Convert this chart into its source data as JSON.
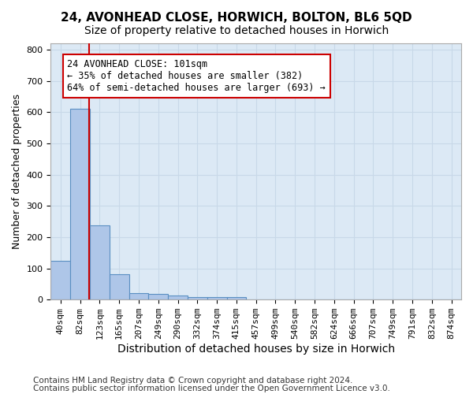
{
  "title": "24, AVONHEAD CLOSE, HORWICH, BOLTON, BL6 5QD",
  "subtitle": "Size of property relative to detached houses in Horwich",
  "xlabel": "Distribution of detached houses by size in Horwich",
  "ylabel": "Number of detached properties",
  "footer_line1": "Contains HM Land Registry data © Crown copyright and database right 2024.",
  "footer_line2": "Contains public sector information licensed under the Open Government Licence v3.0.",
  "bin_labels": [
    "40sqm",
    "82sqm",
    "123sqm",
    "165sqm",
    "207sqm",
    "249sqm",
    "290sqm",
    "332sqm",
    "374sqm",
    "415sqm",
    "457sqm",
    "499sqm",
    "540sqm",
    "582sqm",
    "624sqm",
    "666sqm",
    "707sqm",
    "749sqm",
    "791sqm",
    "832sqm",
    "874sqm"
  ],
  "bar_heights": [
    125,
    610,
    237,
    80,
    20,
    18,
    12,
    7,
    7,
    8,
    0,
    0,
    0,
    0,
    0,
    0,
    0,
    0,
    0,
    0,
    0
  ],
  "bar_color": "#aec6e8",
  "bar_edgecolor": "#5a8fc2",
  "property_line_x": 1.46,
  "property_line_color": "#cc0000",
  "annotation_text": "24 AVONHEAD CLOSE: 101sqm\n← 35% of detached houses are smaller (382)\n64% of semi-detached houses are larger (693) →",
  "annotation_box_color": "#ffffff",
  "annotation_box_edgecolor": "#cc0000",
  "ylim": [
    0,
    820
  ],
  "yticks": [
    0,
    100,
    200,
    300,
    400,
    500,
    600,
    700,
    800
  ],
  "grid_color": "#c8d8e8",
  "background_color": "#dce9f5",
  "title_fontsize": 11,
  "subtitle_fontsize": 10,
  "xlabel_fontsize": 10,
  "ylabel_fontsize": 9,
  "tick_fontsize": 8,
  "annotation_fontsize": 8.5,
  "footer_fontsize": 7.5
}
